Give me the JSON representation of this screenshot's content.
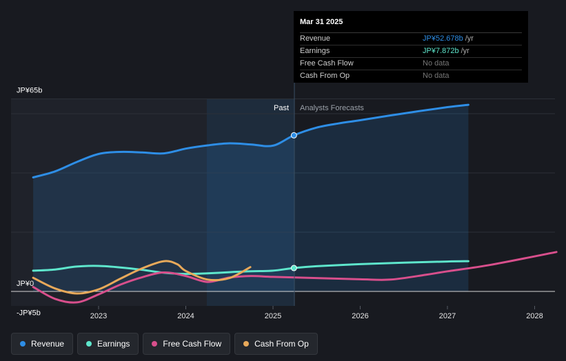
{
  "chart_data": {
    "type": "line",
    "title": "",
    "y_unit": "JP¥ (billions)",
    "ylim": [
      -5,
      65
    ],
    "y_tick_labels": [
      {
        "value": 65,
        "label": "JP¥65b"
      },
      {
        "value": 0,
        "label": "JP¥0"
      },
      {
        "value": -5,
        "label": "-JP¥5b"
      }
    ],
    "x_tick_labels": [
      "2023",
      "2024",
      "2025",
      "2026",
      "2027",
      "2028"
    ],
    "x_range": [
      2022.25,
      2028.25
    ],
    "divider_x": 2025.24,
    "past_label": "Past",
    "forecast_label": "Analysts Forecasts",
    "series": [
      {
        "name": "Revenue",
        "color": "#2e8ee6",
        "fill": true,
        "points": [
          [
            2022.25,
            38.5
          ],
          [
            2022.5,
            40.5
          ],
          [
            2022.75,
            43.7
          ],
          [
            2023.0,
            46.4
          ],
          [
            2023.25,
            47.1
          ],
          [
            2023.5,
            46.9
          ],
          [
            2023.75,
            46.6
          ],
          [
            2024.0,
            48.2
          ],
          [
            2024.25,
            49.3
          ],
          [
            2024.5,
            50.0
          ],
          [
            2024.75,
            49.6
          ],
          [
            2025.0,
            49.2
          ],
          [
            2025.24,
            52.7
          ],
          [
            2025.5,
            55.3
          ],
          [
            2025.75,
            56.7
          ],
          [
            2026.0,
            57.8
          ],
          [
            2026.5,
            60.1
          ],
          [
            2027.0,
            62.2
          ],
          [
            2027.24,
            63.0
          ]
        ]
      },
      {
        "name": "Earnings",
        "color": "#5ee6cc",
        "fill": false,
        "points": [
          [
            2022.25,
            7.0
          ],
          [
            2022.5,
            7.4
          ],
          [
            2022.75,
            8.4
          ],
          [
            2023.0,
            8.6
          ],
          [
            2023.25,
            8.1
          ],
          [
            2023.5,
            7.3
          ],
          [
            2023.75,
            6.3
          ],
          [
            2024.0,
            5.9
          ],
          [
            2024.25,
            6.1
          ],
          [
            2024.5,
            6.5
          ],
          [
            2024.75,
            6.8
          ],
          [
            2025.0,
            7.0
          ],
          [
            2025.24,
            7.9
          ],
          [
            2025.5,
            8.5
          ],
          [
            2026.0,
            9.2
          ],
          [
            2026.5,
            9.7
          ],
          [
            2027.0,
            10.1
          ],
          [
            2027.24,
            10.2
          ]
        ]
      },
      {
        "name": "Free Cash Flow",
        "color": "#d84f8c",
        "fill": false,
        "points": [
          [
            2022.25,
            1.5
          ],
          [
            2022.5,
            -2.5
          ],
          [
            2022.75,
            -3.7
          ],
          [
            2023.0,
            -1.0
          ],
          [
            2023.25,
            2.3
          ],
          [
            2023.5,
            4.8
          ],
          [
            2023.75,
            6.4
          ],
          [
            2024.0,
            5.2
          ],
          [
            2024.25,
            3.2
          ],
          [
            2024.5,
            4.7
          ],
          [
            2024.75,
            5.2
          ],
          [
            2025.0,
            4.9
          ],
          [
            2025.5,
            4.5
          ],
          [
            2026.0,
            4.1
          ],
          [
            2026.35,
            4.0
          ],
          [
            2026.75,
            5.6
          ],
          [
            2027.0,
            6.8
          ],
          [
            2027.5,
            9.0
          ],
          [
            2028.25,
            13.3
          ]
        ]
      },
      {
        "name": "Cash From Op",
        "color": "#e8a95a",
        "fill": false,
        "points": [
          [
            2022.25,
            4.6
          ],
          [
            2022.5,
            1.0
          ],
          [
            2022.75,
            -0.7
          ],
          [
            2023.0,
            0.7
          ],
          [
            2023.25,
            4.3
          ],
          [
            2023.5,
            7.8
          ],
          [
            2023.75,
            10.2
          ],
          [
            2023.9,
            9.2
          ],
          [
            2024.0,
            6.9
          ],
          [
            2024.25,
            4.0
          ],
          [
            2024.5,
            4.5
          ],
          [
            2024.74,
            8.2
          ]
        ]
      }
    ]
  },
  "tooltip": {
    "date": "Mar 31 2025",
    "rows": [
      {
        "label": "Revenue",
        "value": "JP¥52.678b",
        "unit": "/yr",
        "color": "#2e8ee6"
      },
      {
        "label": "Earnings",
        "value": "JP¥7.872b",
        "unit": "/yr",
        "color": "#5ee6cc"
      },
      {
        "label": "Free Cash Flow",
        "value": "No data",
        "unit": "",
        "color": "#777777"
      },
      {
        "label": "Cash From Op",
        "value": "No data",
        "unit": "",
        "color": "#777777"
      }
    ]
  },
  "legend": [
    {
      "label": "Revenue",
      "color": "#2e8ee6"
    },
    {
      "label": "Earnings",
      "color": "#5ee6cc"
    },
    {
      "label": "Free Cash Flow",
      "color": "#d84f8c"
    },
    {
      "label": "Cash From Op",
      "color": "#e8a95a"
    }
  ]
}
